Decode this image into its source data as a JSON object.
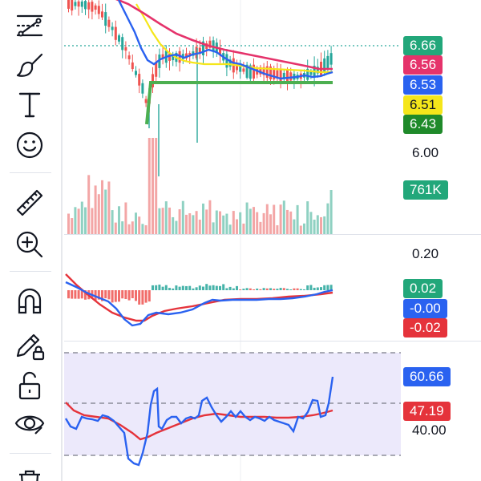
{
  "toolbar": {
    "tools": [
      {
        "name": "trend-line-tool-icon",
        "interactable": true
      },
      {
        "name": "brush-tool-icon",
        "interactable": true
      },
      {
        "name": "text-tool-icon",
        "interactable": true
      },
      {
        "name": "emoji-tool-icon",
        "interactable": true
      },
      {
        "name": "ruler-measure-icon",
        "interactable": true
      },
      {
        "name": "zoom-in-icon",
        "interactable": true
      },
      {
        "name": "magnet-icon",
        "interactable": true
      },
      {
        "name": "lock-drawings-icon",
        "interactable": true
      },
      {
        "name": "unlock-icon",
        "interactable": true
      },
      {
        "name": "eye-visibility-icon",
        "interactable": true
      },
      {
        "name": "trash-icon",
        "interactable": true
      }
    ]
  },
  "main_pane": {
    "price_labels": [
      {
        "value": "6.66",
        "color": "#22a77a",
        "text_color": "#ffffff"
      },
      {
        "value": "6.56",
        "color": "#e5336b",
        "text_color": "#ffffff"
      },
      {
        "value": "6.53",
        "color": "#2a62f0",
        "text_color": "#ffffff"
      },
      {
        "value": "6.51",
        "color": "#f5e61a",
        "text_color": "#131722"
      },
      {
        "value": "6.43",
        "color": "#1f8a2a",
        "text_color": "#ffffff"
      }
    ],
    "axis_tick": "6.00",
    "volume_label": {
      "value": "761K",
      "color": "#22a77a"
    }
  },
  "macd_pane": {
    "axis_tick": "0.20",
    "labels": [
      {
        "value": "0.02",
        "color": "#22a77a"
      },
      {
        "value": "-0.00",
        "color": "#2a62f0"
      },
      {
        "value": "-0.02",
        "color": "#e5333b"
      }
    ]
  },
  "rsi_pane": {
    "axis_tick": "40.00",
    "labels": [
      {
        "value": "60.66",
        "color": "#2a62f0"
      },
      {
        "value": "47.19",
        "color": "#e5333b"
      }
    ]
  },
  "colors": {
    "up": "#26a69a",
    "down": "#ef5350",
    "ma_fast": "#2a62f0",
    "ma_slow": "#e5336b",
    "ma_mid": "#f5e61a",
    "support": "#4caf50",
    "volume_up": "#8fd1c2",
    "volume_down": "#f3a6a6",
    "rsi_band": "#ece9fb"
  }
}
